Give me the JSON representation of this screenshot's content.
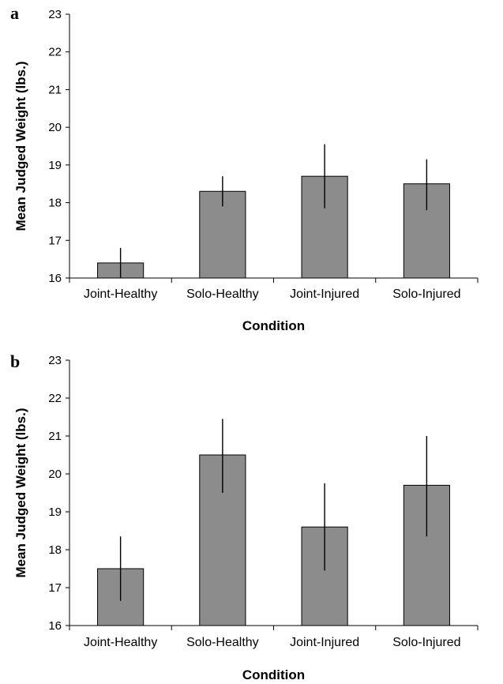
{
  "chart_data": [
    {
      "panel": "a",
      "type": "bar",
      "categories": [
        "Joint-Healthy",
        "Solo-Healthy",
        "Joint-Injured",
        "Solo-Injured"
      ],
      "values": [
        16.4,
        18.3,
        18.7,
        18.5
      ],
      "error_low": [
        16.0,
        17.9,
        17.85,
        17.8
      ],
      "error_high": [
        16.8,
        18.7,
        19.55,
        19.15
      ],
      "xlabel": "Condition",
      "ylabel": "Mean Judged Weight (lbs.)",
      "ylim": [
        16,
        23
      ],
      "yticks": [
        "16",
        "17",
        "18",
        "19",
        "20",
        "21",
        "22",
        "23"
      ],
      "bar_color": "#8c8c8c",
      "grid": false,
      "legend": "none"
    },
    {
      "panel": "b",
      "type": "bar",
      "categories": [
        "Joint-Healthy",
        "Solo-Healthy",
        "Joint-Injured",
        "Solo-Injured"
      ],
      "values": [
        17.5,
        20.5,
        18.6,
        19.7
      ],
      "error_low": [
        16.65,
        19.5,
        17.45,
        18.35
      ],
      "error_high": [
        18.35,
        21.45,
        19.75,
        21.0
      ],
      "xlabel": "Condition",
      "ylabel": "Mean Judged Weight (lbs.)",
      "ylim": [
        16,
        23
      ],
      "yticks": [
        "16",
        "17",
        "18",
        "19",
        "20",
        "21",
        "22",
        "23"
      ],
      "bar_color": "#8c8c8c",
      "grid": false,
      "legend": "none"
    }
  ]
}
